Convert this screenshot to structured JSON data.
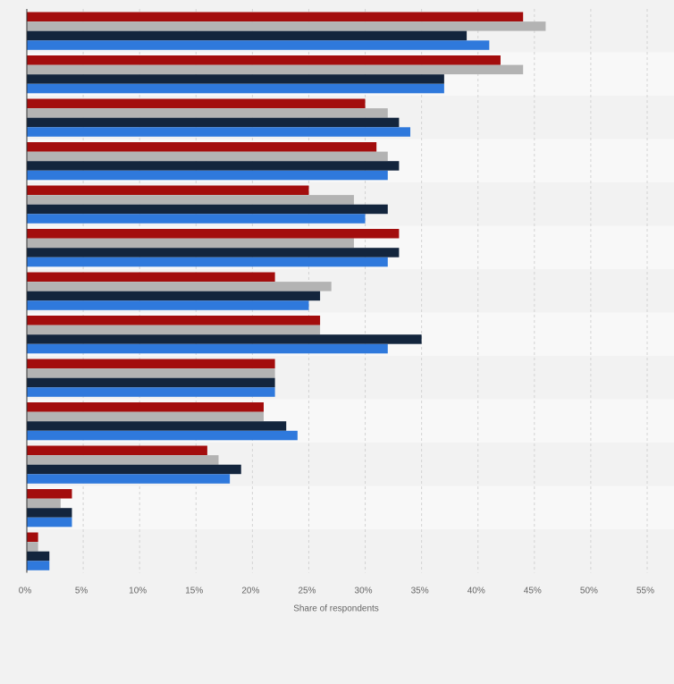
{
  "chart_data": {
    "type": "bar",
    "orientation": "horizontal",
    "categories": [
      "",
      "",
      "",
      "",
      "",
      "",
      "",
      "",
      "",
      "",
      "",
      "",
      ""
    ],
    "series": [
      {
        "color": "#a30d0d",
        "values": [
          44,
          42,
          30,
          31,
          25,
          33,
          22,
          26,
          22,
          21,
          16,
          4,
          1
        ]
      },
      {
        "color": "#b3b3b3",
        "values": [
          46,
          44,
          32,
          32,
          29,
          29,
          27,
          26,
          22,
          21,
          17,
          3,
          1
        ]
      },
      {
        "color": "#13253d",
        "values": [
          39,
          37,
          33,
          33,
          32,
          33,
          26,
          35,
          22,
          23,
          19,
          4,
          2
        ]
      },
      {
        "color": "#2f79dc",
        "values": [
          41,
          37,
          34,
          32,
          30,
          32,
          25,
          32,
          22,
          24,
          18,
          4,
          2
        ]
      }
    ],
    "xlabel": "Share of respondents",
    "xlim": [
      0,
      55
    ],
    "xticks": [
      "0%",
      "5%",
      "10%",
      "15%",
      "20%",
      "25%",
      "30%",
      "35%",
      "40%",
      "45%",
      "50%",
      "55%"
    ],
    "grid": "vertical dashed",
    "legend": "none",
    "band_colors": [
      "#f2f2f2",
      "#f8f8f8"
    ]
  }
}
